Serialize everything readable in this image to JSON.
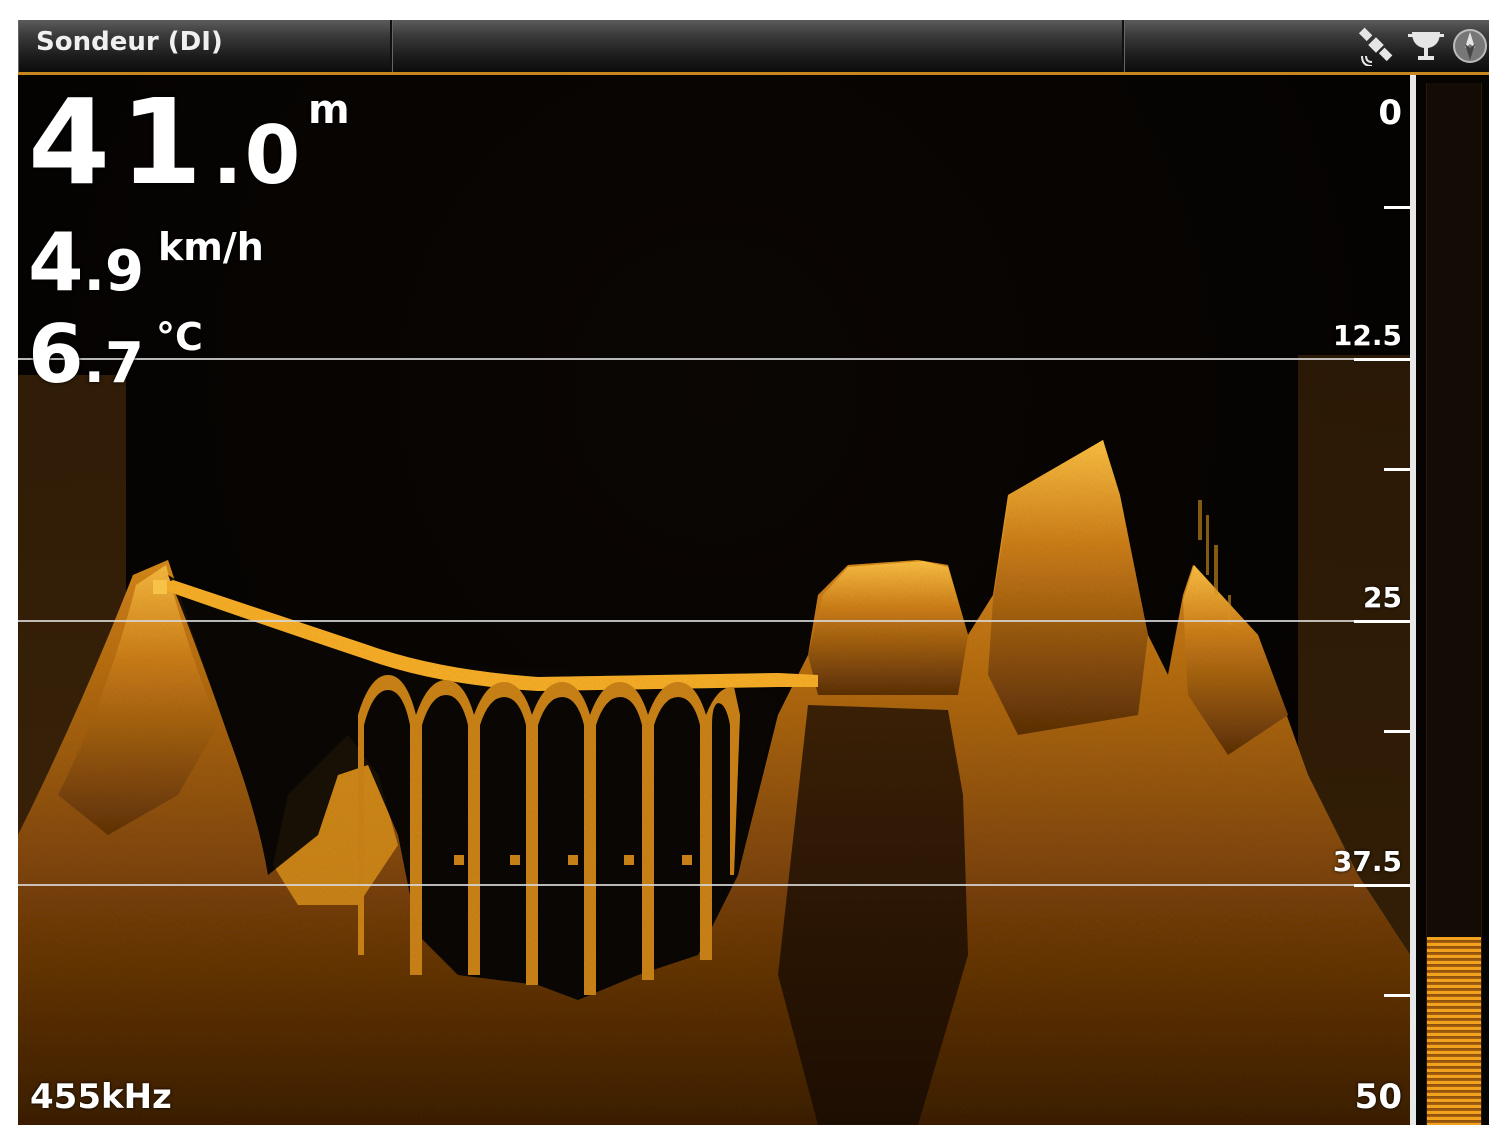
{
  "titlebar": {
    "title": "Sondeur (DI)",
    "icons": [
      "gps-satellite-icon",
      "trophy-cup-icon",
      "compass-icon"
    ]
  },
  "readouts": {
    "depth": {
      "int": "41",
      "dec": ".0",
      "unit": "m"
    },
    "speed": {
      "int": "4",
      "dec": ".9",
      "unit": "km/h"
    },
    "temperature": {
      "int": "6",
      "dec": ".7",
      "unit": "°C"
    }
  },
  "frequency": "455kHz",
  "depth_scale": {
    "labels": [
      "0",
      "12.5",
      "25",
      "37.5",
      "50"
    ],
    "min": 0,
    "max": 50
  },
  "signal_bar": {
    "level": 0.18
  },
  "colors": {
    "sonar_bright": "#f2b02a",
    "sonar_mid": "#b86a12",
    "sonar_dark": "#3a2006",
    "background": "#050302",
    "accent_line": "#c8861e"
  }
}
